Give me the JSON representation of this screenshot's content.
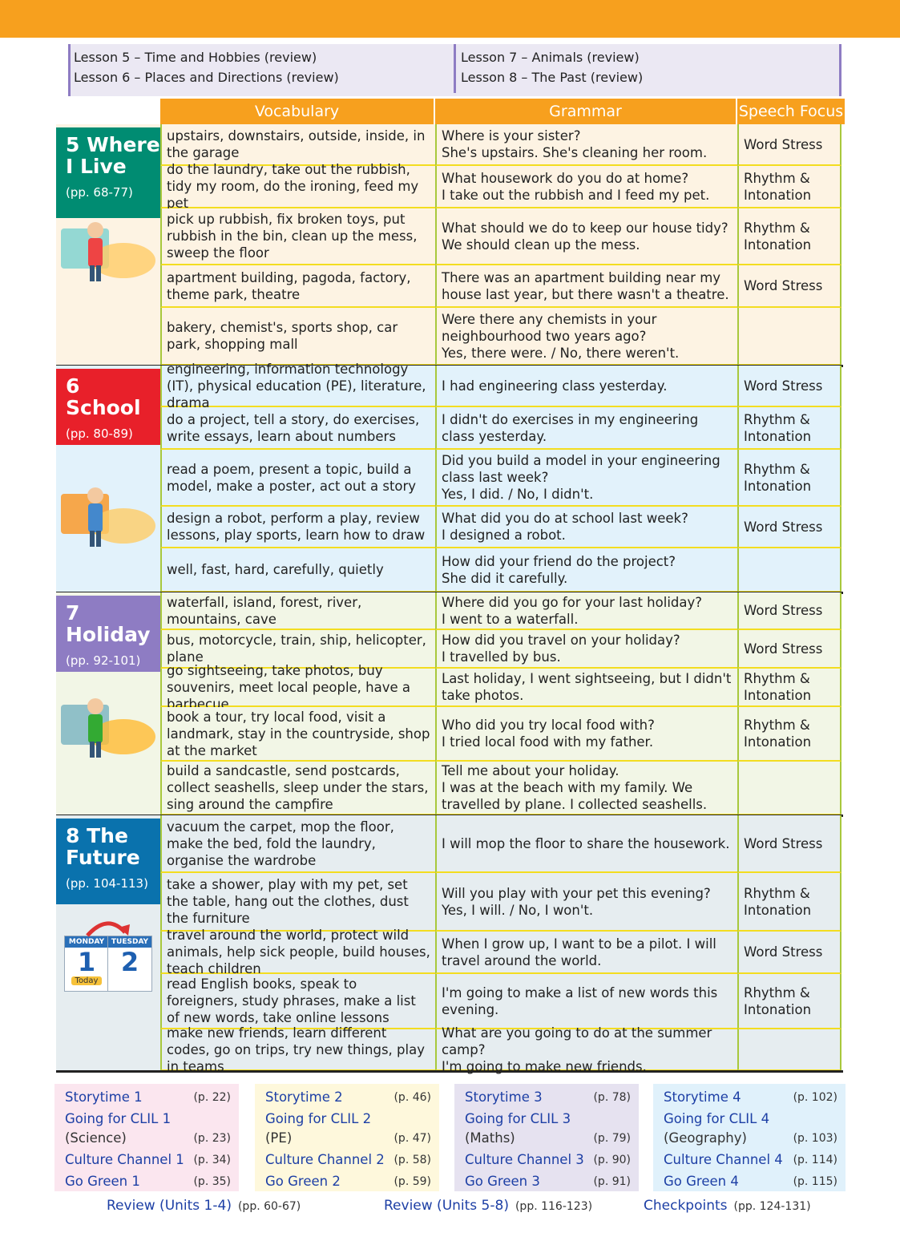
{
  "lessons": {
    "left": [
      "Lesson 5 – Time and Hobbies (review)",
      "Lesson 6 – Places and Directions (review)"
    ],
    "right": [
      "Lesson 7 – Animals (review)",
      "Lesson 8 – The Past (review)"
    ]
  },
  "headers": {
    "vocabulary": "Vocabulary",
    "grammar": "Grammar",
    "speech": "Speech Focus"
  },
  "colors": {
    "orange": "#f7a01e",
    "unit5": "#008c72",
    "unit6": "#e8202a",
    "unit7": "#8e7cc3",
    "unit8": "#0a72ad"
  },
  "units": [
    {
      "title": "5  Where\nI Live",
      "pages": "(pp. 68-77)",
      "color": "#008c72",
      "bg": "#fdf3e3",
      "illustration": "girl-sweeping-icon",
      "rows": [
        {
          "vocab": "upstairs, downstairs, outside, inside, in the garage",
          "grammar": "Where is your sister?\nShe's upstairs. She's cleaning her room.",
          "speech": "Word Stress"
        },
        {
          "vocab": "do the laundry, take out the rubbish, tidy my room, do the ironing, feed my pet",
          "grammar": "What housework do you do at home?\nI take out the rubbish and I feed my pet.",
          "speech": "Rhythm &\nIntonation"
        },
        {
          "vocab": "pick up rubbish, fix broken toys, put rubbish in the bin, clean up the mess, sweep the floor",
          "grammar": "What should we do to keep our house tidy?\nWe should clean up the mess.",
          "speech": "Rhythm &\nIntonation"
        },
        {
          "vocab": "apartment building, pagoda, factory, theme park, theatre",
          "grammar": "There was an apartment building near my house last year, but there wasn't a theatre.",
          "speech": "Word Stress"
        },
        {
          "vocab": "bakery, chemist's, sports shop, car park, shopping mall",
          "grammar": "Were there any chemists in your neighbourhood two years ago?\nYes, there were. / No, there weren't.",
          "speech": ""
        }
      ]
    },
    {
      "title": "6  School",
      "pages": "(pp. 80-89)",
      "color": "#e8202a",
      "bg": "#e2f2fb",
      "illustration": "children-building-model-icon",
      "rows": [
        {
          "vocab": "engineering, information technology (IT), physical education (PE), literature, drama",
          "grammar": "I had engineering class yesterday.",
          "speech": "Word Stress"
        },
        {
          "vocab": "do a project, tell a story, do exercises, write essays, learn about numbers",
          "grammar": "I didn't do exercises in my engineering class yesterday.",
          "speech": "Rhythm &\nIntonation"
        },
        {
          "vocab": "read a poem, present a topic, build a model, make a poster, act out a story",
          "grammar": "Did you build a model in your engineering class last week?\nYes, I did. / No, I didn't.",
          "speech": "Rhythm &\nIntonation"
        },
        {
          "vocab": "design a robot, perform a play, review lessons, play sports, learn how to draw",
          "grammar": "What did you do at school last week?\nI designed a robot.",
          "speech": "Word Stress"
        },
        {
          "vocab": "well, fast, hard, carefully, quietly",
          "grammar": "How did your friend do the project?\nShe did it carefully.",
          "speech": ""
        }
      ]
    },
    {
      "title": "7  Holiday",
      "pages": "(pp. 92-101)",
      "color": "#8e7cc3",
      "bg": "#f2f6e6",
      "illustration": "boy-at-landscape-icon",
      "rows": [
        {
          "vocab": "waterfall, island, forest, river, mountains, cave",
          "grammar": "Where did you go for your last holiday?\nI went to a waterfall.",
          "speech": "Word Stress"
        },
        {
          "vocab": "bus, motorcycle, train, ship, helicopter, plane",
          "grammar": "How did you travel on your holiday?\nI travelled by bus.",
          "speech": "Word Stress"
        },
        {
          "vocab": "go sightseeing, take photos, buy souvenirs, meet local people, have a barbecue",
          "grammar": "Last holiday, I went sightseeing, but I didn't take photos.",
          "speech": "Rhythm &\nIntonation"
        },
        {
          "vocab": "book a tour, try local food, visit a landmark, stay in the countryside, shop at the market",
          "grammar": "Who did you try local food with?\nI tried local food with my father.",
          "speech": "Rhythm &\nIntonation"
        },
        {
          "vocab": "build a sandcastle, send postcards, collect seashells, sleep under the stars, sing around the campfire",
          "grammar": "Tell me about your holiday.\nI was at the beach with my family. We travelled by plane. I collected seashells.",
          "speech": ""
        }
      ]
    },
    {
      "title": "8  The\nFuture",
      "pages": "(pp. 104-113)",
      "color": "#0a72ad",
      "bg": "#e6edf0",
      "illustration": "calendar-icon",
      "calendar": {
        "day1": "MONDAY",
        "num1": "1",
        "today": "Today",
        "day2": "TUESDAY",
        "num2": "2"
      },
      "rows": [
        {
          "vocab": "vacuum the carpet, mop the floor, make the bed, fold the laundry, organise the wardrobe",
          "grammar": "I will mop the floor to share the housework.",
          "speech": "Word Stress"
        },
        {
          "vocab": "take a shower, play with my pet, set the table, hang out the clothes, dust the furniture",
          "grammar": "Will you play with your pet this evening?\nYes, I will. / No, I won't.",
          "speech": "Rhythm &\nIntonation"
        },
        {
          "vocab": "travel around the world, protect wild animals, help sick people, build houses, teach children",
          "grammar": "When I grow up, I want to be a pilot. I will travel around the world.",
          "speech": "Word Stress"
        },
        {
          "vocab": "read English books, speak to foreigners, study phrases, make a list of new words, take online lessons",
          "grammar": "I'm going to make a list of new words this evening.",
          "speech": "Rhythm &\nIntonation"
        },
        {
          "vocab": "make new friends, learn different codes, go on trips, try new things, play in teams",
          "grammar": "What are you going to do at the summer camp?\nI'm going to make new friends.",
          "speech": ""
        }
      ]
    }
  ],
  "extras": [
    {
      "bg": "#fbe6ef",
      "items": [
        {
          "label": "Storytime 1",
          "page": "(p. 22)"
        },
        {
          "label": "Going for CLIL 1",
          "sub": "(Science)",
          "page": "(p. 23)"
        },
        {
          "label": "Culture Channel 1",
          "page": "(p. 34)"
        },
        {
          "label": "Go Green 1",
          "page": "(p. 35)"
        }
      ]
    },
    {
      "bg": "#fef8dc",
      "items": [
        {
          "label": "Storytime 2",
          "page": "(p. 46)"
        },
        {
          "label": "Going for CLIL 2",
          "sub": "(PE)",
          "page": "(p. 47)"
        },
        {
          "label": "Culture Channel 2",
          "page": "(p. 58)"
        },
        {
          "label": "Go Green 2",
          "page": "(p. 59)"
        }
      ]
    },
    {
      "bg": "#e6e2f0",
      "items": [
        {
          "label": "Storytime 3",
          "page": "(p. 78)"
        },
        {
          "label": "Going for CLIL 3",
          "sub": "(Maths)",
          "page": "(p. 79)"
        },
        {
          "label": "Culture Channel 3",
          "page": "(p. 90)"
        },
        {
          "label": "Go Green 3",
          "page": "(p. 91)"
        }
      ]
    },
    {
      "bg": "#e0f1fb",
      "items": [
        {
          "label": "Storytime 4",
          "page": "(p. 102)"
        },
        {
          "label": "Going for CLIL 4",
          "sub": "(Geography)",
          "page": "(p. 103)"
        },
        {
          "label": "Culture Channel 4",
          "page": "(p. 114)"
        },
        {
          "label": "Go Green 4",
          "page": "(p. 115)"
        }
      ]
    }
  ],
  "footer": [
    {
      "label": "Review (Units 1-4)",
      "page": "(pp. 60-67)"
    },
    {
      "label": "Review (Units 5-8)",
      "page": "(pp. 116-123)"
    },
    {
      "label": "Checkpoints",
      "page": "(pp. 124-131)"
    }
  ]
}
